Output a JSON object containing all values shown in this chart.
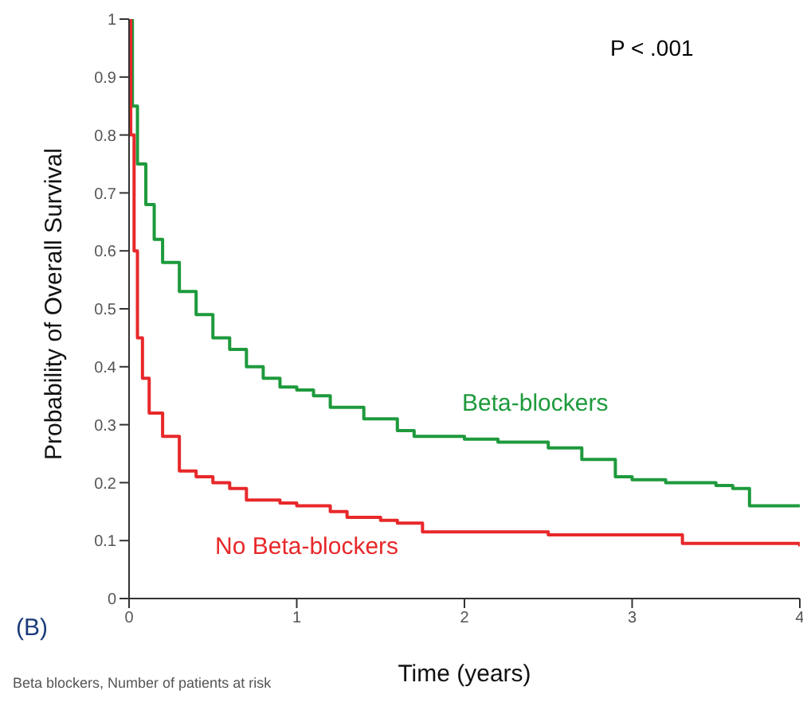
{
  "chart_data": {
    "type": "step",
    "xlabel": "Time (years)",
    "ylabel": "Probability of Overall Survival",
    "annotations": [
      "P < .001",
      "(B)",
      "Beta blockers, Number of patients at risk"
    ],
    "xlim": [
      0,
      4
    ],
    "xticks": [
      0,
      1,
      2,
      3,
      4
    ],
    "ylim": [
      0,
      1
    ],
    "yticks": [
      0,
      0.1,
      0.2,
      0.3,
      0.4,
      0.5,
      0.6,
      0.7,
      0.8,
      0.9,
      1
    ],
    "grid": false,
    "legend": false,
    "marker": "none",
    "line_style": "solid",
    "series": [
      {
        "name": "Beta-blockers",
        "color": "#1e9a3c",
        "x": [
          0,
          0.02,
          0.05,
          0.1,
          0.15,
          0.2,
          0.3,
          0.4,
          0.5,
          0.6,
          0.7,
          0.8,
          0.9,
          1.0,
          1.1,
          1.2,
          1.4,
          1.5,
          1.6,
          1.7,
          2.0,
          2.2,
          2.5,
          2.7,
          2.9,
          3.0,
          3.2,
          3.5,
          3.6,
          3.7,
          4.0
        ],
        "values": [
          1.0,
          0.85,
          0.75,
          0.68,
          0.62,
          0.58,
          0.53,
          0.49,
          0.45,
          0.43,
          0.4,
          0.38,
          0.365,
          0.36,
          0.35,
          0.33,
          0.31,
          0.31,
          0.29,
          0.28,
          0.275,
          0.27,
          0.26,
          0.24,
          0.21,
          0.205,
          0.2,
          0.195,
          0.19,
          0.16,
          0.16
        ]
      },
      {
        "name": "No Beta-blockers",
        "color": "#e8282a",
        "x": [
          0,
          0.01,
          0.03,
          0.05,
          0.08,
          0.12,
          0.2,
          0.3,
          0.4,
          0.5,
          0.6,
          0.7,
          0.9,
          1.0,
          1.2,
          1.3,
          1.5,
          1.6,
          1.75,
          2.5,
          3.1,
          3.3,
          4.0
        ],
        "values": [
          1.0,
          0.8,
          0.6,
          0.45,
          0.38,
          0.32,
          0.28,
          0.22,
          0.21,
          0.2,
          0.19,
          0.17,
          0.165,
          0.16,
          0.15,
          0.14,
          0.135,
          0.13,
          0.115,
          0.11,
          0.11,
          0.095,
          0.09
        ]
      }
    ]
  }
}
